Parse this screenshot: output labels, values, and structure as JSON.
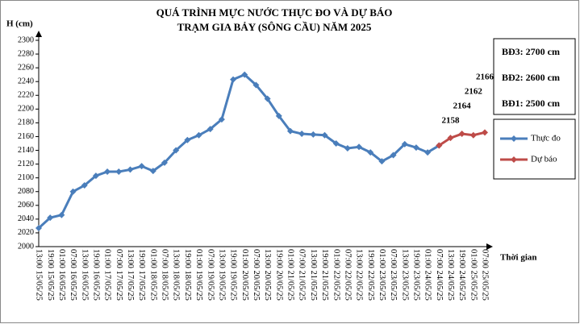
{
  "chart_data": {
    "type": "line",
    "title": "QUÁ TRÌNH MỰC NƯỚC THỰC ĐO VÀ DỰ BÁO",
    "subtitle": "TRẠM GIA BẢY (SÔNG CẦU) NĂM 2025",
    "y_label": "H (cm)",
    "x_label": "Thời gian",
    "categories": [
      "13:00 15/05/25",
      "19:00 15/05/25",
      "01:00 16/05/25",
      "07:00 16/05/25",
      "13:00 16/05/25",
      "19:00 16/05/25",
      "01:00 17/05/25",
      "07:00 17/05/25",
      "13:00 17/05/25",
      "19:00 17/05/25",
      "01:00 18/05/25",
      "07:00 18/05/25",
      "13:00 18/05/25",
      "19:00 18/05/25",
      "01:00 19/05/25",
      "07:00 19/05/25",
      "13:00 19/05/25",
      "19:00 19/05/25",
      "01:00 20/05/25",
      "07:00 20/05/25",
      "13:00 20/05/25",
      "19:00 20/05/25",
      "01:00 21/05/25",
      "07:00 21/05/25",
      "13:00 21/05/25",
      "19:00 21/05/25",
      "01:00 22/05/25",
      "07:00 22/05/25",
      "13:00 22/05/25",
      "19:00 22/05/25",
      "01:00 23/05/25",
      "07:00 23/05/25",
      "13:00 23/05/25",
      "19:00 23/05/25",
      "01:00 24/05/25",
      "07:00 24/05/25",
      "13:00 24/05/25",
      "19:00 24/05/25",
      "01:00 25/05/25",
      "07:00 25/05/25"
    ],
    "series": [
      {
        "name": "Thực đo",
        "color": "#4a7ebb",
        "values": [
          2027,
          2042,
          2046,
          2080,
          2089,
          2103,
          2109,
          2109,
          2112,
          2117,
          2110,
          2122,
          2140,
          2155,
          2162,
          2171,
          2185,
          2243,
          2250,
          2235,
          2215,
          2190,
          2168,
          2164,
          2163,
          2162,
          2150,
          2143,
          2145,
          2137,
          2124,
          2133,
          2149,
          2144,
          2137,
          2147,
          null,
          null,
          null,
          null
        ]
      },
      {
        "name": "Dự báo",
        "color": "#be4b48",
        "values": [
          null,
          null,
          null,
          null,
          null,
          null,
          null,
          null,
          null,
          null,
          null,
          null,
          null,
          null,
          null,
          null,
          null,
          null,
          null,
          null,
          null,
          null,
          null,
          null,
          null,
          null,
          null,
          null,
          null,
          null,
          null,
          null,
          null,
          null,
          null,
          2147,
          2158,
          2164,
          2162,
          2166
        ],
        "value_labels": [
          null,
          null,
          null,
          null,
          null,
          null,
          null,
          null,
          null,
          null,
          null,
          null,
          null,
          null,
          null,
          null,
          null,
          null,
          null,
          null,
          null,
          null,
          null,
          null,
          null,
          null,
          null,
          null,
          null,
          null,
          null,
          null,
          null,
          null,
          null,
          null,
          "2158",
          "2164",
          "2162",
          "2166"
        ]
      }
    ],
    "ylim": [
      2000,
      2300
    ],
    "yticks": [
      2000,
      2020,
      2040,
      2060,
      2080,
      2100,
      2120,
      2140,
      2160,
      2180,
      2200,
      2220,
      2240,
      2260,
      2280,
      2300
    ],
    "grid": false,
    "alert_levels": [
      "BĐ3: 2700 cm",
      "BĐ2: 2600 cm",
      "BĐ1: 2500 cm"
    ]
  }
}
